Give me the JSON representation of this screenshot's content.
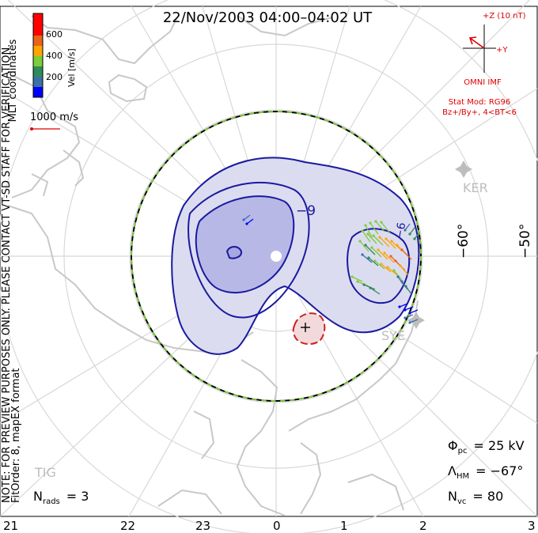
{
  "title": "22/Nov/2003 04:00–04:02 UT",
  "colorbar": {
    "label": "Vel [m/s]",
    "ticks": [
      "600",
      "400",
      "200"
    ],
    "colors": [
      "#0000ff",
      "#3a70a8",
      "#2e8b57",
      "#7ccd3a",
      "#ffa500",
      "#e8651b",
      "#ff0000"
    ]
  },
  "coordinates_label": "MLT coordinates",
  "scale_vector": "1000 m/s",
  "imf": {
    "z_label": "+Z (10 nT)",
    "y_label": "+Y",
    "source": "OMNI IMF",
    "model_line1": "Stat Mod: RG96",
    "model_line2": "Bz+/By+, 4<BT<6"
  },
  "lat_labels": [
    "−60°",
    "−50°"
  ],
  "stations": [
    "KER",
    "SYE",
    "TIG"
  ],
  "contour_labels": [
    "−9",
    "−6"
  ],
  "note_line1": "NOTE: FOR PREVIEW PURPOSES ONLY. PLEASE CONTACT VT-SD STAFF FOR VERIFICATION.",
  "note_line2": "FitOrder: 8, mapEX format",
  "stats": {
    "phi_sym": "Φ",
    "phi_sub": "pc",
    "phi_val": "= 25 kV",
    "lam_sym": "Λ",
    "lam_sub": "HM",
    "lam_val": "= −67°",
    "nvc_sym": "N",
    "nvc_sub": "vc",
    "nvc_val": "= 80",
    "nrads_sym": "N",
    "nrads_sub": "rads",
    "nrads_val": "= 3"
  },
  "mlt_labels": [
    "21",
    "22",
    "23",
    "0",
    "1",
    "2",
    "3"
  ],
  "colors": {
    "coast": "#c8c8c8",
    "grid": "#d8d8d8",
    "neg_contour": "#1a1aa0",
    "pos_contour": "#cc2222",
    "neg_fill": "#dcdcf0",
    "imf_red": "#dd0000",
    "boundary_green": "#7cc83a"
  }
}
